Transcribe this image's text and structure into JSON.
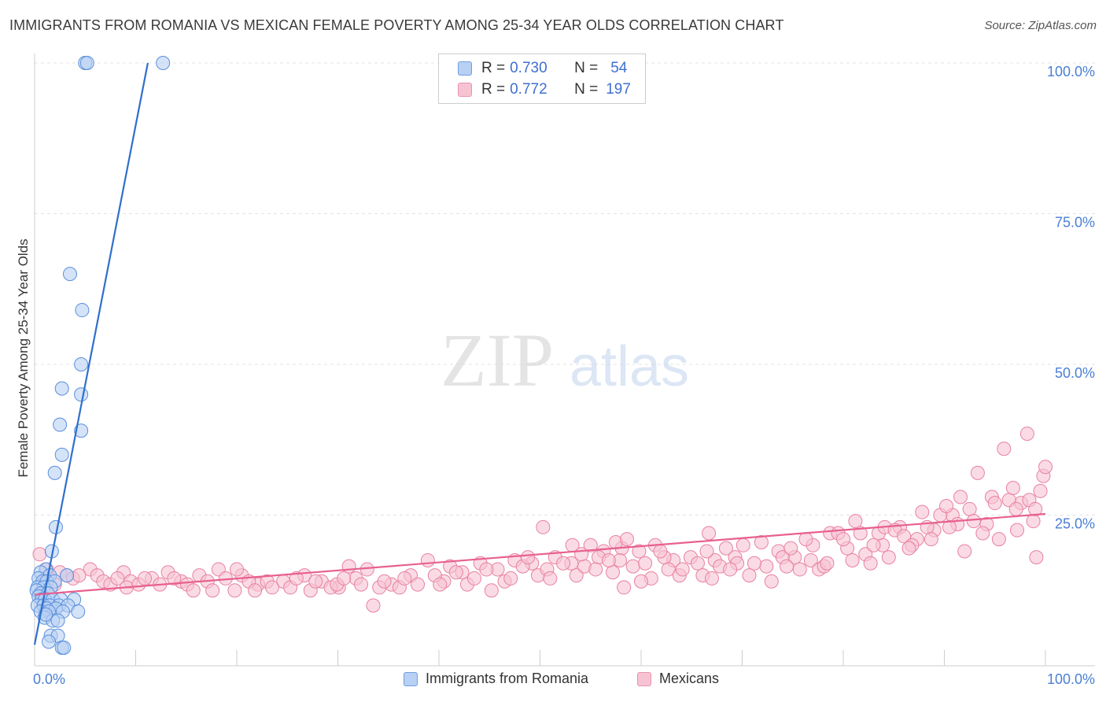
{
  "title": "IMMIGRANTS FROM ROMANIA VS MEXICAN FEMALE POVERTY AMONG 25-34 YEAR OLDS CORRELATION CHART",
  "source": "Source: ZipAtlas.com",
  "watermark": {
    "zip": "ZIP",
    "atlas": "atlas"
  },
  "legend": {
    "r_label": "R =",
    "n_label": "N =",
    "items": [
      {
        "r": "0.730",
        "n": "54",
        "fill": "#b8d0f3",
        "stroke": "#6f9ee0"
      },
      {
        "r": "0.772",
        "n": "197",
        "fill": "#f7c3d3",
        "stroke": "#e992b0"
      }
    ]
  },
  "chart_data": {
    "type": "scatter",
    "title": "IMMIGRANTS FROM ROMANIA VS MEXICAN FEMALE POVERTY AMONG 25-34 YEAR OLDS CORRELATION CHART",
    "xlabel": "",
    "ylabel": "Female Poverty Among 25-34 Year Olds",
    "xlim": [
      0,
      100
    ],
    "ylim": [
      0,
      100
    ],
    "x_tick_labels": [
      "0.0%",
      "100.0%"
    ],
    "y_tick_labels": [
      "25.0%",
      "50.0%",
      "75.0%",
      "100.0%"
    ],
    "y_ticks": [
      25,
      50,
      75,
      100
    ],
    "series": [
      {
        "name": "Immigrants from Romania",
        "color": "#5b8fdc",
        "fill": "#b8d0f3",
        "line_color": "#2f6fcc",
        "trend": [
          [
            0.0,
            3.5
          ],
          [
            11.2,
            100.0
          ]
        ],
        "points": [
          [
            5.0,
            100
          ],
          [
            5.2,
            100
          ],
          [
            12.7,
            100
          ],
          [
            3.5,
            65
          ],
          [
            4.7,
            59
          ],
          [
            4.6,
            50
          ],
          [
            2.7,
            46
          ],
          [
            4.6,
            45
          ],
          [
            2.5,
            40
          ],
          [
            4.6,
            39
          ],
          [
            2.7,
            35
          ],
          [
            2.0,
            32
          ],
          [
            2.1,
            23
          ],
          [
            1.7,
            19
          ],
          [
            1.1,
            16
          ],
          [
            0.6,
            15.5
          ],
          [
            1.5,
            15
          ],
          [
            3.2,
            15
          ],
          [
            0.4,
            14.5
          ],
          [
            0.8,
            14
          ],
          [
            1.2,
            14
          ],
          [
            2.0,
            14
          ],
          [
            0.3,
            13
          ],
          [
            0.9,
            13
          ],
          [
            1.6,
            13
          ],
          [
            0.2,
            12.5
          ],
          [
            0.6,
            12
          ],
          [
            1.3,
            12
          ],
          [
            0.4,
            11.5
          ],
          [
            0.7,
            11
          ],
          [
            1.0,
            11
          ],
          [
            1.8,
            11
          ],
          [
            2.6,
            11
          ],
          [
            3.9,
            11
          ],
          [
            0.3,
            10
          ],
          [
            0.9,
            10
          ],
          [
            1.5,
            10
          ],
          [
            2.4,
            10
          ],
          [
            3.3,
            10
          ],
          [
            1.2,
            9.5
          ],
          [
            2.1,
            9.5
          ],
          [
            0.6,
            9
          ],
          [
            1.4,
            9
          ],
          [
            2.8,
            9
          ],
          [
            4.3,
            9
          ],
          [
            1.0,
            8
          ],
          [
            1.8,
            7.5
          ],
          [
            2.3,
            7.5
          ],
          [
            1.6,
            5
          ],
          [
            2.3,
            5
          ],
          [
            1.4,
            4
          ],
          [
            2.7,
            3
          ],
          [
            2.9,
            3
          ],
          [
            1.1,
            8.5
          ]
        ]
      },
      {
        "name": "Mexicans",
        "color": "#e8819f",
        "fill": "#f7c3d3",
        "line_color": "#e8608e",
        "trend": [
          [
            0.0,
            11.8
          ],
          [
            100.0,
            25.2
          ]
        ],
        "points": [
          [
            0.5,
            18.5
          ],
          [
            1.2,
            16
          ],
          [
            2.5,
            15.5
          ],
          [
            3.2,
            15
          ],
          [
            5.5,
            16
          ],
          [
            6.2,
            15
          ],
          [
            8.8,
            15.5
          ],
          [
            9.5,
            14
          ],
          [
            11.6,
            14.5
          ],
          [
            13.2,
            15.5
          ],
          [
            14.5,
            14
          ],
          [
            16.3,
            15
          ],
          [
            18.2,
            16
          ],
          [
            20.5,
            15
          ],
          [
            22.1,
            13.5
          ],
          [
            24.6,
            14
          ],
          [
            26.7,
            15
          ],
          [
            28.4,
            14
          ],
          [
            30.1,
            13
          ],
          [
            31.8,
            14.5
          ],
          [
            33.5,
            10
          ],
          [
            35.3,
            13.5
          ],
          [
            37.2,
            15
          ],
          [
            38.9,
            17.5
          ],
          [
            40.5,
            14
          ],
          [
            42.3,
            15.5
          ],
          [
            44.1,
            17
          ],
          [
            45.8,
            16
          ],
          [
            47.5,
            17.5
          ],
          [
            49.2,
            17
          ],
          [
            51.5,
            18
          ],
          [
            53.1,
            17
          ],
          [
            55.0,
            20
          ],
          [
            56.3,
            19
          ],
          [
            58.1,
            19.5
          ],
          [
            59.8,
            19
          ],
          [
            61.4,
            20
          ],
          [
            63.2,
            17.5
          ],
          [
            64.9,
            18
          ],
          [
            66.7,
            22
          ],
          [
            68.4,
            19.5
          ],
          [
            70.1,
            20
          ],
          [
            71.9,
            20.5
          ],
          [
            73.6,
            19
          ],
          [
            75.2,
            18
          ],
          [
            77.0,
            20
          ],
          [
            78.7,
            22
          ],
          [
            80.4,
            19.5
          ],
          [
            82.2,
            18.5
          ],
          [
            83.9,
            20
          ],
          [
            85.6,
            23
          ],
          [
            87.3,
            21
          ],
          [
            89.0,
            22.5
          ],
          [
            90.8,
            25
          ],
          [
            92.5,
            26
          ],
          [
            94.2,
            23.5
          ],
          [
            95.9,
            36
          ],
          [
            97.6,
            27
          ],
          [
            98.2,
            38.5
          ],
          [
            99.1,
            18
          ],
          [
            1.0,
            14
          ],
          [
            2.0,
            13.5
          ],
          [
            3.8,
            14.5
          ],
          [
            4.4,
            15
          ],
          [
            6.8,
            14
          ],
          [
            7.5,
            13.5
          ],
          [
            8.2,
            14.5
          ],
          [
            9.1,
            13
          ],
          [
            10.3,
            13.5
          ],
          [
            10.9,
            14.5
          ],
          [
            12.4,
            13.5
          ],
          [
            13.8,
            14.5
          ],
          [
            15.1,
            13.5
          ],
          [
            15.7,
            12.5
          ],
          [
            17.1,
            14
          ],
          [
            17.6,
            12.5
          ],
          [
            18.9,
            14.5
          ],
          [
            19.8,
            12.5
          ],
          [
            21.2,
            14
          ],
          [
            21.8,
            12.5
          ],
          [
            23.0,
            14
          ],
          [
            23.5,
            13
          ],
          [
            25.3,
            13
          ],
          [
            25.9,
            14.5
          ],
          [
            27.3,
            12.5
          ],
          [
            27.8,
            14
          ],
          [
            29.3,
            13
          ],
          [
            29.9,
            13.5
          ],
          [
            31.1,
            16.5
          ],
          [
            32.3,
            13.5
          ],
          [
            32.9,
            16
          ],
          [
            34.1,
            13
          ],
          [
            34.6,
            14
          ],
          [
            36.1,
            13
          ],
          [
            36.6,
            14.5
          ],
          [
            37.9,
            13.5
          ],
          [
            39.6,
            15
          ],
          [
            40.1,
            13.5
          ],
          [
            41.1,
            16.5
          ],
          [
            42.8,
            13.5
          ],
          [
            43.5,
            14.5
          ],
          [
            44.7,
            16
          ],
          [
            46.5,
            14
          ],
          [
            47.1,
            14.5
          ],
          [
            48.3,
            16.5
          ],
          [
            49.8,
            15
          ],
          [
            50.7,
            16
          ],
          [
            52.3,
            17
          ],
          [
            53.6,
            15
          ],
          [
            54.4,
            16.5
          ],
          [
            55.8,
            18
          ],
          [
            57.2,
            15.5
          ],
          [
            57.9,
            17.5
          ],
          [
            59.2,
            16.5
          ],
          [
            60.4,
            17
          ],
          [
            61.0,
            14.5
          ],
          [
            62.3,
            18
          ],
          [
            62.7,
            16
          ],
          [
            63.8,
            15
          ],
          [
            65.6,
            17
          ],
          [
            66.1,
            15
          ],
          [
            67.3,
            17.5
          ],
          [
            67.8,
            16.5
          ],
          [
            69.3,
            18
          ],
          [
            69.5,
            17
          ],
          [
            70.7,
            15
          ],
          [
            72.4,
            16.5
          ],
          [
            74.0,
            18
          ],
          [
            74.4,
            16.5
          ],
          [
            75.7,
            16
          ],
          [
            76.8,
            17.5
          ],
          [
            77.6,
            16
          ],
          [
            78.1,
            16.5
          ],
          [
            79.5,
            22
          ],
          [
            80.0,
            21
          ],
          [
            81.2,
            24
          ],
          [
            81.7,
            22
          ],
          [
            82.7,
            17
          ],
          [
            83.5,
            22
          ],
          [
            84.1,
            23
          ],
          [
            85.1,
            22.5
          ],
          [
            86.0,
            21.5
          ],
          [
            86.8,
            20
          ],
          [
            87.8,
            25.5
          ],
          [
            88.3,
            23
          ],
          [
            89.6,
            25
          ],
          [
            90.2,
            26.5
          ],
          [
            91.3,
            23.5
          ],
          [
            91.6,
            28
          ],
          [
            92.9,
            24
          ],
          [
            93.3,
            32
          ],
          [
            94.7,
            28
          ],
          [
            95.4,
            21
          ],
          [
            96.4,
            27.5
          ],
          [
            97.2,
            22.5
          ],
          [
            99.5,
            29
          ],
          [
            99.8,
            31.5
          ],
          [
            100.0,
            33
          ],
          [
            98.8,
            24
          ],
          [
            97.1,
            26
          ],
          [
            50.3,
            23
          ],
          [
            53.2,
            20
          ],
          [
            55.5,
            16
          ],
          [
            57.5,
            20.5
          ],
          [
            58.3,
            13
          ],
          [
            60.0,
            14
          ],
          [
            61.9,
            19
          ],
          [
            64.1,
            16
          ],
          [
            66.5,
            19
          ],
          [
            67.0,
            14.5
          ],
          [
            68.8,
            16
          ],
          [
            71.2,
            17
          ],
          [
            72.9,
            14
          ],
          [
            74.8,
            19.5
          ],
          [
            76.3,
            21
          ],
          [
            78.4,
            17
          ],
          [
            80.9,
            17.5
          ],
          [
            83.0,
            20
          ],
          [
            84.5,
            18
          ],
          [
            86.5,
            19.5
          ],
          [
            88.7,
            21
          ],
          [
            90.5,
            23
          ],
          [
            92.0,
            19
          ],
          [
            93.8,
            22
          ],
          [
            95.0,
            27
          ],
          [
            96.8,
            29.5
          ],
          [
            98.4,
            27.5
          ],
          [
            99.0,
            26
          ],
          [
            20.0,
            16
          ],
          [
            30.6,
            14.5
          ],
          [
            41.7,
            15.5
          ],
          [
            45.2,
            12.5
          ],
          [
            48.8,
            18
          ],
          [
            51.0,
            14.5
          ],
          [
            54.1,
            18.5
          ],
          [
            56.8,
            17.5
          ],
          [
            58.6,
            21
          ]
        ]
      }
    ]
  },
  "bottom_legend": [
    {
      "label": "Immigrants from Romania",
      "fill": "#b8d0f3",
      "stroke": "#6f9ee0"
    },
    {
      "label": "Mexicans",
      "fill": "#f7c3d3",
      "stroke": "#e992b0"
    }
  ],
  "colors": {
    "grid": "#e3e3e3",
    "axis": "#cccccc",
    "tick_label": "#4a7fd6"
  }
}
